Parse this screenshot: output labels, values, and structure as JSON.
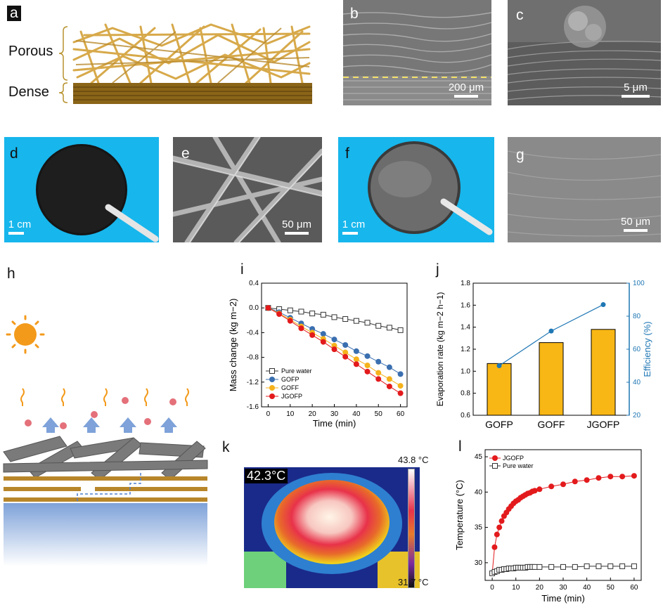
{
  "panel_labels": {
    "a": "a",
    "b": "b",
    "c": "c",
    "d": "d",
    "e": "e",
    "f": "f",
    "g": "g",
    "h": "h",
    "i": "i",
    "j": "j",
    "k": "k",
    "l": "l"
  },
  "panel_a": {
    "porous_label": "Porous",
    "dense_label": "Dense"
  },
  "scale_bars": {
    "b": "200 μm",
    "c": "5 μm",
    "d": "1 cm",
    "e": "50 μm",
    "f": "1 cm",
    "g": "50 μm"
  },
  "panel_k": {
    "temp_readout": "42.3°C",
    "scale_max": "43.8  °C",
    "scale_min": "31.7  °C"
  },
  "colors": {
    "blue_bg": "#17b6ec",
    "gold_fiber": "#c99a3c",
    "sun": "#f39a1b",
    "bar_fill": "#f9b715",
    "line_blue": "#1f77b4",
    "jgofp_red": "#e31a1c"
  },
  "chart_data": [
    {
      "panel": "i",
      "type": "line",
      "xlabel": "Time (min)",
      "ylabel": "Mass change (kg m−2)",
      "xlim": [
        -3,
        63
      ],
      "ylim": [
        -1.6,
        0.4
      ],
      "xticks": [
        "0",
        "10",
        "20",
        "30",
        "40",
        "50",
        "60"
      ],
      "yticks": [
        "0.4",
        "0.0",
        "-0.4",
        "-0.8",
        "-1.2",
        "-1.6"
      ],
      "x": [
        0,
        5,
        10,
        15,
        20,
        25,
        30,
        35,
        40,
        45,
        50,
        55,
        60
      ],
      "series": [
        {
          "name": "Pure water",
          "color": "#333333",
          "marker": "open-square",
          "values": [
            0,
            -0.02,
            -0.04,
            -0.06,
            -0.09,
            -0.11,
            -0.15,
            -0.18,
            -0.21,
            -0.24,
            -0.29,
            -0.32,
            -0.36
          ]
        },
        {
          "name": "GOFP",
          "color": "#3a6fb0",
          "marker": "circle",
          "values": [
            0,
            -0.07,
            -0.16,
            -0.25,
            -0.34,
            -0.42,
            -0.51,
            -0.6,
            -0.7,
            -0.78,
            -0.87,
            -0.96,
            -1.07
          ]
        },
        {
          "name": "GOFF",
          "color": "#f5b21b",
          "marker": "circle",
          "values": [
            0,
            -0.09,
            -0.19,
            -0.3,
            -0.4,
            -0.5,
            -0.61,
            -0.72,
            -0.83,
            -0.93,
            -1.05,
            -1.15,
            -1.26
          ]
        },
        {
          "name": "JGOFP",
          "color": "#e31a1c",
          "marker": "circle",
          "values": [
            0,
            -0.1,
            -0.21,
            -0.33,
            -0.44,
            -0.55,
            -0.67,
            -0.79,
            -0.91,
            -1.03,
            -1.15,
            -1.27,
            -1.38
          ]
        }
      ],
      "legend": "bottom-left"
    },
    {
      "panel": "j",
      "type": "bar",
      "categories": [
        "GOFP",
        "GOFF",
        "JGOFP"
      ],
      "ylabel": "Evaporation rate (kg m−2 h−1)",
      "y2label": "Efficiency (%)",
      "ylim": [
        0.6,
        1.8
      ],
      "y2lim": [
        20,
        100
      ],
      "yticks": [
        "0.6",
        "0.8",
        "1.0",
        "1.2",
        "1.4",
        "1.6",
        "1.8"
      ],
      "y2ticks": [
        "20",
        "40",
        "60",
        "80",
        "100"
      ],
      "values": [
        1.07,
        1.26,
        1.38
      ],
      "efficiency": [
        50,
        71,
        87
      ]
    },
    {
      "panel": "l",
      "type": "line",
      "xlabel": "Time (min)",
      "ylabel": "Temperature (°C)",
      "xlim": [
        -3,
        63
      ],
      "ylim": [
        27.5,
        46
      ],
      "xticks": [
        "0",
        "10",
        "20",
        "30",
        "40",
        "50",
        "60"
      ],
      "yticks": [
        "30",
        "35",
        "40",
        "45"
      ],
      "series": [
        {
          "name": "JGOFP",
          "color": "#e31a1c",
          "marker": "circle",
          "x": [
            0,
            1,
            2,
            3,
            4,
            5,
            6,
            7,
            8,
            9,
            10,
            11,
            12,
            13,
            14,
            15,
            16,
            17,
            18,
            20,
            25,
            30,
            35,
            40,
            45,
            50,
            55,
            60
          ],
          "values": [
            28.5,
            32.2,
            34.0,
            35.0,
            35.9,
            36.6,
            37.1,
            37.6,
            38.0,
            38.4,
            38.7,
            38.9,
            39.2,
            39.4,
            39.6,
            39.8,
            39.9,
            40.1,
            40.2,
            40.4,
            40.8,
            41.1,
            41.5,
            41.7,
            42.0,
            42.2,
            42.2,
            42.3
          ]
        },
        {
          "name": "Pure water",
          "color": "#333333",
          "marker": "open-square",
          "x": [
            0,
            1,
            2,
            3,
            4,
            5,
            6,
            7,
            8,
            9,
            10,
            11,
            12,
            13,
            14,
            15,
            16,
            17,
            18,
            20,
            25,
            30,
            35,
            40,
            45,
            50,
            55,
            60
          ],
          "values": [
            28.5,
            28.7,
            28.8,
            29.0,
            29.0,
            29.1,
            29.1,
            29.2,
            29.2,
            29.2,
            29.3,
            29.3,
            29.3,
            29.3,
            29.3,
            29.4,
            29.4,
            29.4,
            29.4,
            29.4,
            29.4,
            29.4,
            29.4,
            29.5,
            29.5,
            29.5,
            29.5,
            29.5
          ]
        }
      ],
      "legend": "top-left"
    }
  ]
}
